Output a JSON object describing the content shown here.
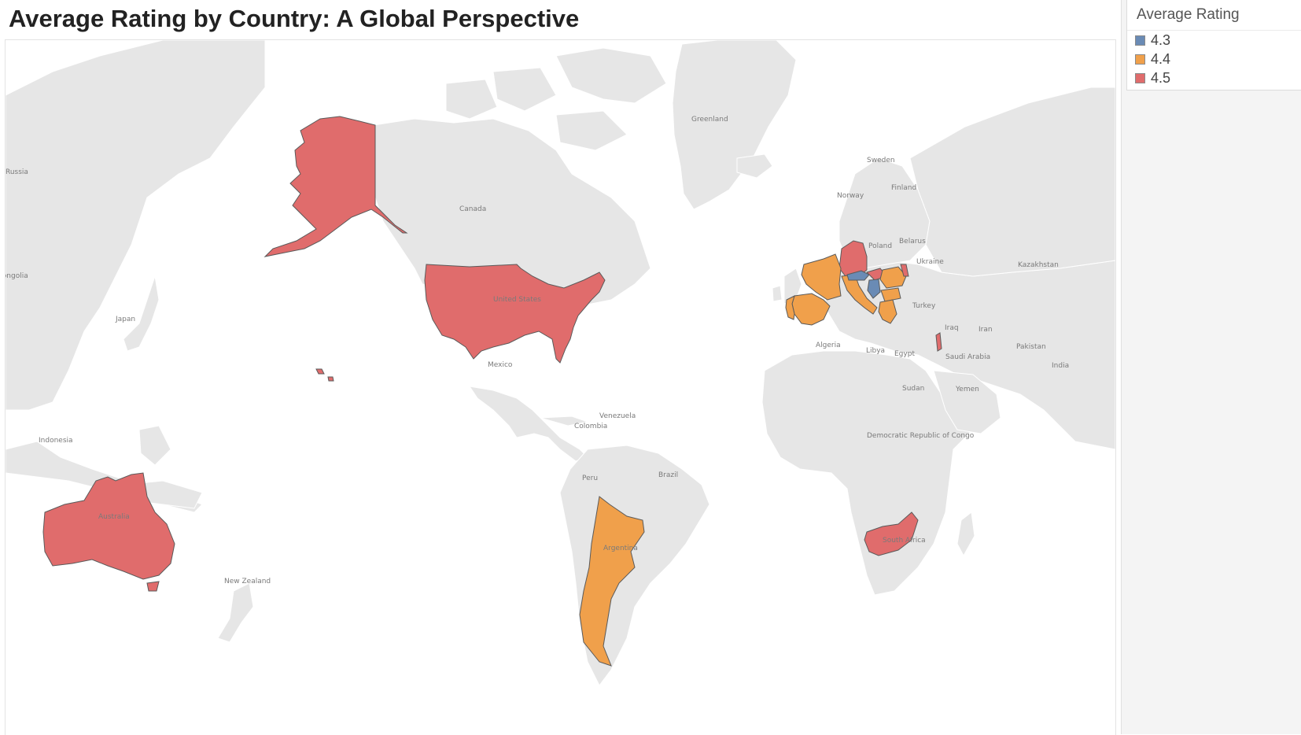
{
  "title": "Average Rating by Country: A Global Perspective",
  "legend": {
    "title": "Average Rating",
    "items": [
      {
        "label": "4.3",
        "color": "#6a8bb5"
      },
      {
        "label": "4.4",
        "color": "#f0a04b"
      },
      {
        "label": "4.5",
        "color": "#e06c6c"
      }
    ]
  },
  "map": {
    "land_color": "#e6e6e6",
    "border_color": "#ffffff",
    "highlight_border": "#5a5a5a",
    "country_labels": [
      "Greenland",
      "Russia",
      "Canada",
      "Sweden",
      "Finland",
      "Norway",
      "Belarus",
      "Poland",
      "Ukraine",
      "Kazakhstan",
      "Mongolia",
      "Japan",
      "United States",
      "Mexico",
      "Turkey",
      "Iraq",
      "Iran",
      "Algeria",
      "Libya",
      "Egypt",
      "Saudi Arabia",
      "Pakistan",
      "India",
      "Yemen",
      "Sudan",
      "Venezuela",
      "Colombia",
      "Democratic Republic of Congo",
      "Indonesia",
      "Peru",
      "Brazil",
      "Australia",
      "New Zealand",
      "Argentina",
      "South Africa"
    ],
    "rated_countries": [
      {
        "name": "United States",
        "rating": "4.5"
      },
      {
        "name": "Australia",
        "rating": "4.5"
      },
      {
        "name": "Germany",
        "rating": "4.5"
      },
      {
        "name": "South Africa",
        "rating": "4.5"
      },
      {
        "name": "Israel",
        "rating": "4.5"
      },
      {
        "name": "Moldova",
        "rating": "4.5"
      },
      {
        "name": "Hungary",
        "rating": "4.5"
      },
      {
        "name": "Argentina",
        "rating": "4.4"
      },
      {
        "name": "France",
        "rating": "4.4"
      },
      {
        "name": "Spain",
        "rating": "4.4"
      },
      {
        "name": "Portugal",
        "rating": "4.4"
      },
      {
        "name": "Italy",
        "rating": "4.4"
      },
      {
        "name": "Greece",
        "rating": "4.4"
      },
      {
        "name": "Romania",
        "rating": "4.4"
      },
      {
        "name": "Bulgaria",
        "rating": "4.4"
      },
      {
        "name": "Austria",
        "rating": "4.3"
      },
      {
        "name": "Serbia",
        "rating": "4.3"
      }
    ]
  }
}
